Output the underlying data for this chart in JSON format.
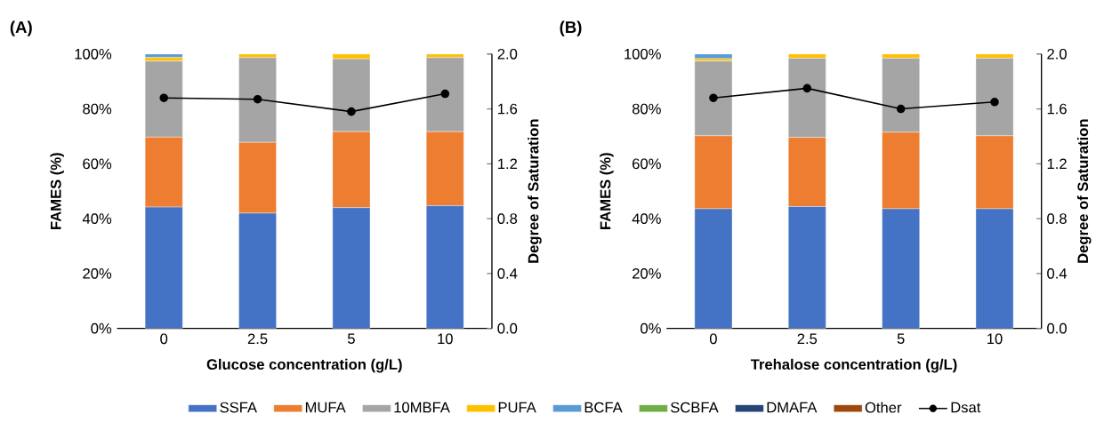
{
  "chart_data": [
    {
      "type": "bar",
      "stacked": true,
      "title": "(A)",
      "xlabel": "Glucose concentration (g/L)",
      "ylabel": "FAMES (%)",
      "y2label": "Degree of Saturation",
      "legend": "bottom",
      "categories": [
        "0",
        "2.5",
        "5",
        "10"
      ],
      "ylim": [
        0,
        100
      ],
      "yticks": [
        {
          "value": 0,
          "label": "0%"
        },
        {
          "value": 20,
          "label": "20%"
        },
        {
          "value": 40,
          "label": "40%"
        },
        {
          "value": 60,
          "label": "60%"
        },
        {
          "value": 80,
          "label": "80%"
        },
        {
          "value": 100,
          "label": "100%"
        }
      ],
      "y2lim": [
        0,
        2
      ],
      "y2ticks": [
        {
          "value": 0,
          "label": "0.0"
        },
        {
          "value": 0.4,
          "label": "0.4"
        },
        {
          "value": 0.8,
          "label": "0.8"
        },
        {
          "value": 1.2,
          "label": "1.2"
        },
        {
          "value": 1.6,
          "label": "1.6"
        },
        {
          "value": 2,
          "label": "2.0"
        }
      ],
      "series": [
        {
          "name": "SSFA",
          "color": "#4472c4",
          "values": [
            44.2,
            42.0,
            44.0,
            44.7
          ]
        },
        {
          "name": "MUFA",
          "color": "#ed7d31",
          "values": [
            25.5,
            25.8,
            27.7,
            27.0
          ]
        },
        {
          "name": "10MBFA",
          "color": "#a5a5a5",
          "values": [
            27.7,
            30.9,
            26.5,
            27.0
          ]
        },
        {
          "name": "PUFA",
          "color": "#ffc000",
          "values": [
            1.3,
            1.3,
            1.8,
            1.3
          ]
        },
        {
          "name": "BCFA",
          "color": "#5b9bd5",
          "values": [
            1.3,
            0,
            0,
            0
          ]
        },
        {
          "name": "SCBFA",
          "color": "#70ad47",
          "values": [
            0,
            0,
            0,
            0
          ]
        },
        {
          "name": "DMAFA",
          "color": "#264478",
          "values": [
            0,
            0,
            0,
            0
          ]
        },
        {
          "name": "Other",
          "color": "#9e480e",
          "values": [
            0,
            0,
            0,
            0
          ]
        },
        {
          "name": "Dsat",
          "type": "line",
          "axis": "y2",
          "color": "#000000",
          "marker": "circle",
          "values": [
            1.68,
            1.67,
            1.58,
            1.71
          ]
        }
      ]
    },
    {
      "type": "bar",
      "stacked": true,
      "title": "(B)",
      "xlabel": "Trehalose concentration (g/L)",
      "ylabel": "FAMES (%)",
      "y2label": "Degree of Saturation",
      "categories": [
        "0",
        "2.5",
        "5",
        "10"
      ],
      "ylim": [
        0,
        100
      ],
      "yticks": [
        {
          "value": 0,
          "label": "0%"
        },
        {
          "value": 20,
          "label": "20%"
        },
        {
          "value": 40,
          "label": "40%"
        },
        {
          "value": 60,
          "label": "60%"
        },
        {
          "value": 80,
          "label": "80%"
        },
        {
          "value": 100,
          "label": "100%"
        }
      ],
      "y2lim": [
        0,
        2
      ],
      "y2ticks": [
        {
          "value": 0,
          "label": "0.0"
        },
        {
          "value": 0.4,
          "label": "0.4"
        },
        {
          "value": 0.8,
          "label": "0.8"
        },
        {
          "value": 1.2,
          "label": "1.2"
        },
        {
          "value": 1.6,
          "label": "1.6"
        },
        {
          "value": 2,
          "label": "2.0"
        }
      ],
      "series": [
        {
          "color": "#4472c4",
          "values": [
            43.6,
            44.4,
            43.6,
            43.6
          ]
        },
        {
          "color": "#ed7d31",
          "values": [
            26.6,
            25.2,
            27.9,
            26.6
          ]
        },
        {
          "color": "#a5a5a5",
          "values": [
            27.2,
            28.9,
            27.0,
            28.3
          ]
        },
        {
          "color": "#ffc000",
          "values": [
            0.9,
            1.5,
            1.5,
            1.5
          ]
        },
        {
          "color": "#5b9bd5",
          "values": [
            1.7,
            0,
            0,
            0
          ]
        },
        {
          "color": "#70ad47",
          "values": [
            0,
            0,
            0,
            0
          ]
        },
        {
          "color": "#264478",
          "values": [
            0,
            0,
            0,
            0
          ]
        },
        {
          "color": "#9e480e",
          "values": [
            0,
            0,
            0,
            0
          ]
        },
        {
          "type": "line",
          "axis": "y2",
          "color": "#000000",
          "marker": "circle",
          "values": [
            1.68,
            1.75,
            1.6,
            1.65
          ]
        }
      ]
    }
  ]
}
